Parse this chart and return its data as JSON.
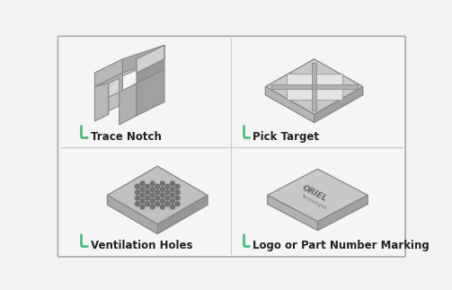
{
  "background_color": "#f2f2f2",
  "border_color": "#bbbbbb",
  "divider_color": "#cccccc",
  "accent_color": "#3cb878",
  "labels": [
    "Trace Notch",
    "Pick Target",
    "Ventilation Holes",
    "Logo or Part Number Marking"
  ],
  "label_fontsize": 8.5,
  "text_color": "#222222",
  "gray_top": "#c8c8c8",
  "gray_side_l": "#b0b0b0",
  "gray_side_r": "#989898",
  "gray_dark": "#808080",
  "gray_edge": "#888888",
  "hole_color": "#e0e0e0",
  "dot_color": "#707070"
}
